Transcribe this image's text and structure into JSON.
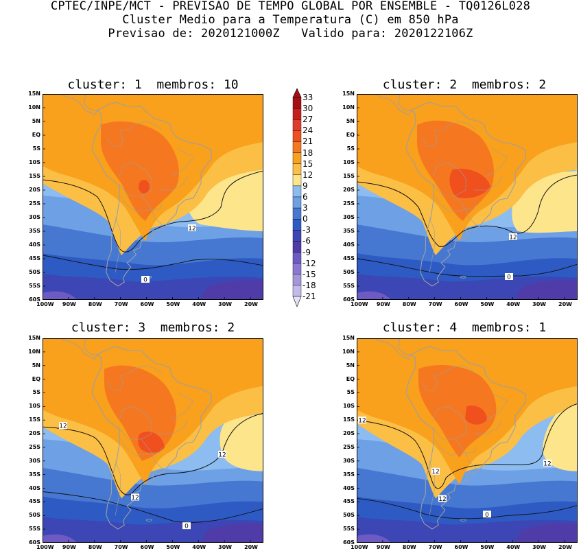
{
  "header": {
    "line1": "CPTEC/INPE/MCT - PREVISAO DE TEMPO GLOBAL POR ENSEMBLE - TQ0126L028",
    "line2": "Cluster Medio para a Temperatura (C) em 850 hPa",
    "line3": "Previsao de: 2020121000Z   Valido para: 2020122106Z"
  },
  "panels": [
    {
      "title": "cluster: 1  membros: 10",
      "contour_labels": [
        "12",
        "0"
      ]
    },
    {
      "title": "cluster: 2  membros: 2",
      "contour_labels": [
        "12",
        "0"
      ]
    },
    {
      "title": "cluster: 3  membros: 2",
      "contour_labels": [
        "12",
        "12",
        "12",
        "0"
      ]
    },
    {
      "title": "cluster: 4  membros: 1",
      "contour_labels": [
        "12",
        "12",
        "12",
        "12",
        "0"
      ]
    }
  ],
  "lat_ticks": [
    "15N",
    "10N",
    "5N",
    "EQ",
    "5S",
    "10S",
    "15S",
    "20S",
    "25S",
    "30S",
    "35S",
    "40S",
    "45S",
    "50S",
    "55S",
    "60S"
  ],
  "lon_ticks": [
    "100W",
    "90W",
    "80W",
    "70W",
    "60W",
    "50W",
    "40W",
    "30W",
    "20W"
  ],
  "colorbar": {
    "labels": [
      "33",
      "30",
      "27",
      "24",
      "21",
      "18",
      "15",
      "12",
      "9",
      "6",
      "3",
      "0",
      "-3",
      "-6",
      "-9",
      "-12",
      "-15",
      "-18",
      "-21"
    ],
    "colors": [
      "#a50f15",
      "#c81e1e",
      "#e03c2c",
      "#f0501e",
      "#f57820",
      "#f9a01c",
      "#fbbf45",
      "#fde58c",
      "#8cbcf0",
      "#6ea0e6",
      "#4678d2",
      "#2d5ac3",
      "#3c46b4",
      "#503ca8",
      "#6e5ac3",
      "#8c78d2",
      "#a596dc",
      "#c3b9eb"
    ],
    "top_arrow_color": "#a50f15",
    "bottom_arrow_color": "#e6e1f5"
  }
}
